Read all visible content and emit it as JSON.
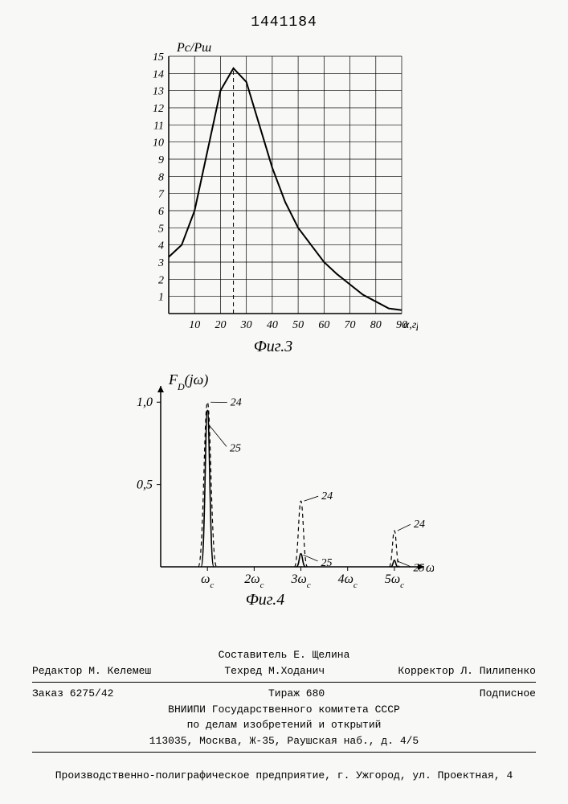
{
  "doc_number": "1441184",
  "fig3": {
    "type": "line",
    "ylabel": "Pс/Pш",
    "xlabel": "α,град",
    "caption": "Фиг.3",
    "xlim": [
      0,
      90
    ],
    "ylim": [
      0,
      15
    ],
    "xtick_step": 10,
    "xticks": [
      10,
      20,
      30,
      40,
      50,
      60,
      70,
      80,
      90
    ],
    "ytick_step": 1,
    "yticks": [
      1,
      2,
      3,
      4,
      5,
      6,
      7,
      8,
      9,
      10,
      11,
      12,
      13,
      14,
      15
    ],
    "grid_color": "#000000",
    "line_color": "#000000",
    "dashed_color": "#000000",
    "line_width": 2,
    "background_color": "#f8f8f6",
    "peak_x": 25,
    "curve": [
      {
        "x": 0,
        "y": 3.3
      },
      {
        "x": 5,
        "y": 4.0
      },
      {
        "x": 10,
        "y": 6.0
      },
      {
        "x": 15,
        "y": 9.5
      },
      {
        "x": 20,
        "y": 13.0
      },
      {
        "x": 25,
        "y": 14.3
      },
      {
        "x": 30,
        "y": 13.5
      },
      {
        "x": 35,
        "y": 11.0
      },
      {
        "x": 40,
        "y": 8.5
      },
      {
        "x": 45,
        "y": 6.5
      },
      {
        "x": 50,
        "y": 5.0
      },
      {
        "x": 55,
        "y": 4.0
      },
      {
        "x": 60,
        "y": 3.0
      },
      {
        "x": 65,
        "y": 2.3
      },
      {
        "x": 70,
        "y": 1.7
      },
      {
        "x": 75,
        "y": 1.1
      },
      {
        "x": 80,
        "y": 0.7
      },
      {
        "x": 85,
        "y": 0.3
      },
      {
        "x": 90,
        "y": 0.2
      }
    ]
  },
  "fig4": {
    "type": "line",
    "ylabel": "F_D(jω)",
    "xlabel": "ω",
    "caption": "Фиг.4",
    "xlim": [
      0,
      5.5
    ],
    "ylim": [
      0,
      1.05
    ],
    "yticks": [
      0.5,
      1.0
    ],
    "xticks": [
      "ω_c",
      "2ω_c",
      "3ω_c",
      "4ω_c",
      "5ω_c"
    ],
    "xtick_positions": [
      1,
      2,
      3,
      4,
      5
    ],
    "line_color": "#000000",
    "line_width": 1.5,
    "background_color": "#f8f8f6",
    "series_labels": {
      "solid": "25",
      "dashed": "24"
    },
    "peaks": [
      {
        "x": 1,
        "solid_height": 0.95,
        "dashed_height": 1.0,
        "width": 0.14
      },
      {
        "x": 3,
        "solid_height": 0.08,
        "dashed_height": 0.4,
        "width": 0.1
      },
      {
        "x": 5,
        "solid_height": 0.04,
        "dashed_height": 0.22,
        "width": 0.08
      }
    ]
  },
  "footer": {
    "compiler": "Составитель Е. Щелина",
    "editor": "Редактор М. Келемеш",
    "techred": "Техред М.Ходанич",
    "corrector": "Корректор Л. Пилипенко",
    "order": "Заказ 6275/42",
    "circulation": "Тираж 680",
    "subscription": "Подписное",
    "org1": "ВНИИПИ Государственного комитета СССР",
    "org2": "по делам изобретений и открытий",
    "address": "113035, Москва, Ж-35, Раушская наб., д. 4/5",
    "imprint": "Производственно-полиграфическое предприятие, г. Ужгород, ул. Проектная, 4"
  }
}
